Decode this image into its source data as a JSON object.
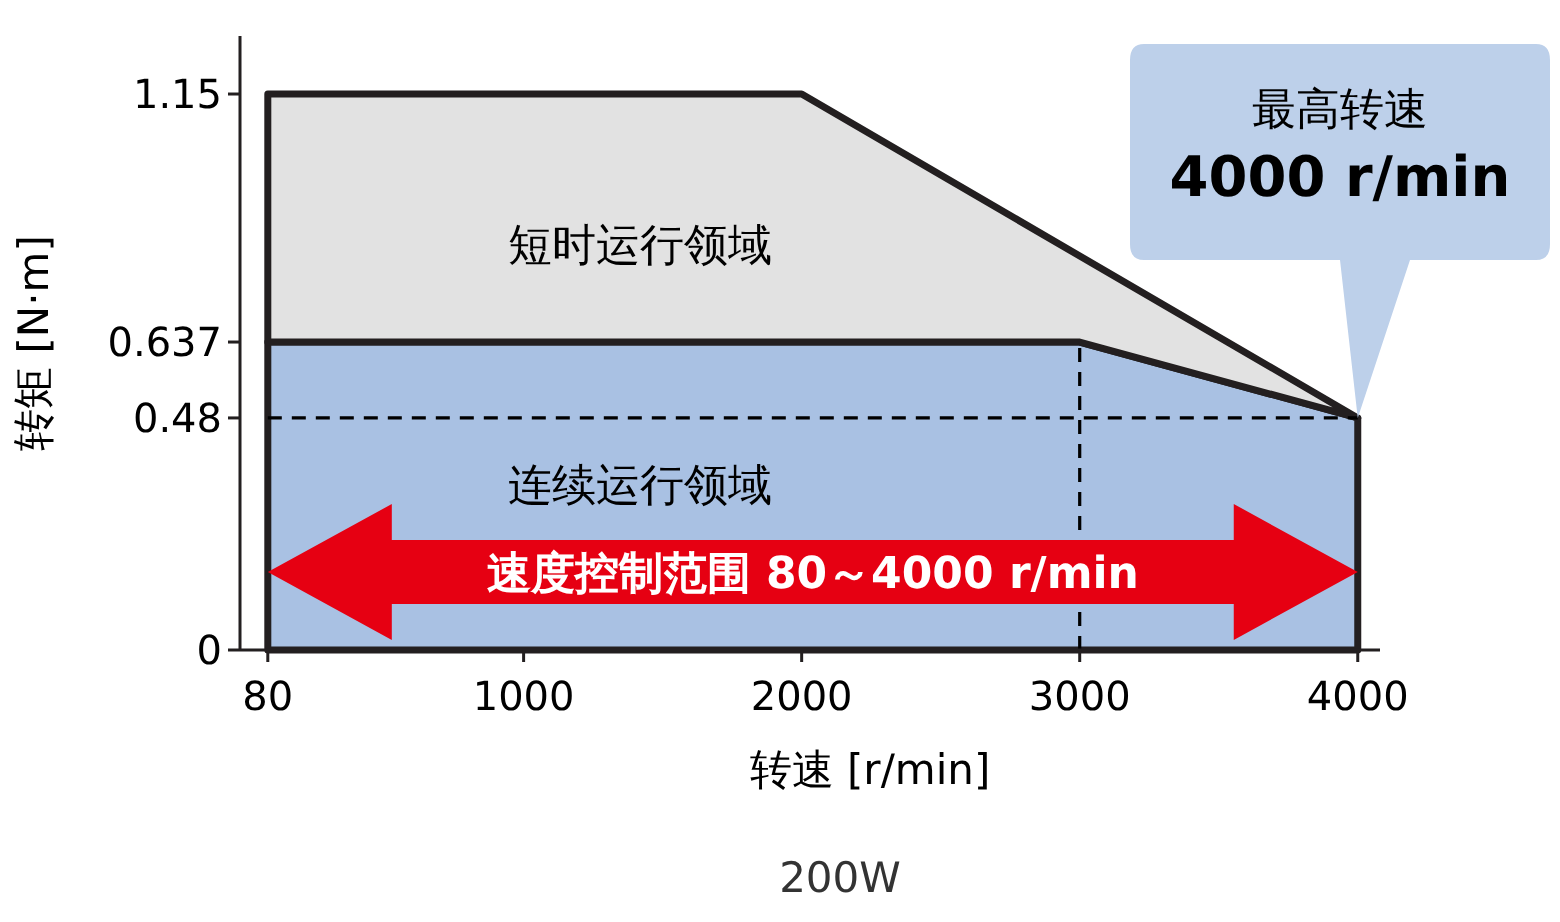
{
  "chart_data": {
    "type": "area",
    "xlabel": "转速 [r/min]",
    "ylabel": "转矩 [N·m]",
    "xlim": [
      -20,
      4080
    ],
    "ylim": [
      0,
      1.27
    ],
    "xticks": [
      80,
      1000,
      2000,
      3000,
      4000
    ],
    "yticks": [
      0,
      0.48,
      0.637,
      1.15
    ],
    "series": [
      {
        "color": "#a9c1e3",
        "x": [
          80,
          3000,
          4000
        ],
        "values": [
          0.637,
          0.637,
          0.48
        ]
      },
      {
        "color": "#e2e2e2",
        "x": [
          80,
          2000,
          4000
        ],
        "values": [
          1.15,
          1.15,
          0.48
        ]
      }
    ],
    "ref_lines": [
      {
        "axis": "y",
        "value": 0.48,
        "line_style": "dashed",
        "color": "#000000"
      },
      {
        "axis": "x",
        "value": 3000,
        "line_style": "dashed",
        "color": "#000000"
      }
    ],
    "annotations": [
      "短时运行领域",
      "连续运行领域",
      "速度控制范围 80～4000 r/min",
      "最高转速\n4000 r/min",
      "200W"
    ],
    "stacked": false,
    "grid": false
  }
}
